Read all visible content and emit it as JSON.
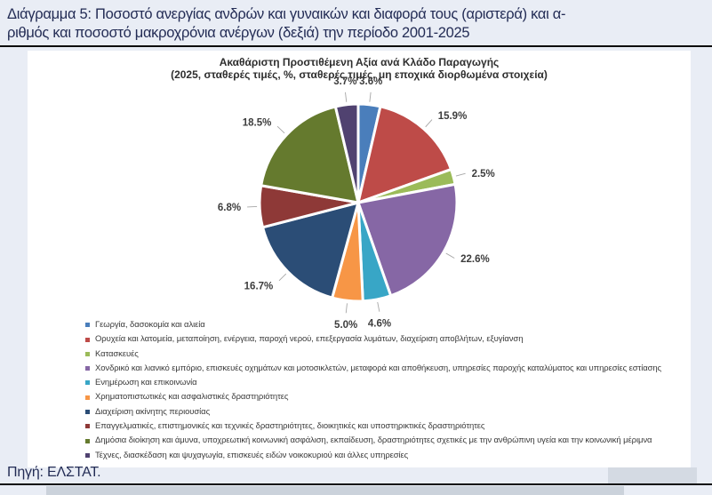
{
  "document": {
    "title_line1": "Διάγραμμα 5: Ποσοστό ανεργίας ανδρών και γυναικών και διαφορά τους (αριστερά) και α-",
    "title_line2": "ριθμός και ποσοστό μακροχρόνια ανέργων (δεξιά) την περίοδο 2001-2025",
    "source": "Πηγή: ΕΛΣΤΑΤ."
  },
  "colors": {
    "page_bg": "#E9EDF5",
    "card_bg": "#FFFFFF",
    "title_text": "#232C55",
    "chart_text": "#2E2E2E",
    "legend_text": "#3A3A3A",
    "leader_line": "#A6A6A6",
    "rule": "#0B0B0B",
    "bottom_strip": "#CBD2DB"
  },
  "chart_data": {
    "type": "pie",
    "title": "Ακαθάριστη Προστιθέμενη Αξία ανά Κλάδο Παραγωγής",
    "subtitle": "(2025, σταθερές τιμές,  %, σταθερές τιμές, μη εποχικά διορθωμένα στοιχεία)",
    "unit": "%",
    "start_angle_deg": 0,
    "direction": "clockwise",
    "legend_position": "bottom-left",
    "slices": [
      {
        "label": "Γεωργία, δασοκομία και αλιεία",
        "value": 3.6,
        "pct_label": "3.6%",
        "color": "#4A7EBB"
      },
      {
        "label": "Ορυχεία και λατομεία, μεταποίηση, ενέργεια, παροχή νερού, επεξεργασία λυμάτων, διαχείριση αποβλήτων, εξυγίανση",
        "value": 15.9,
        "pct_label": "15.9%",
        "color": "#BE4B48"
      },
      {
        "label": "Κατασκευές",
        "value": 2.5,
        "pct_label": "2.5%",
        "color": "#9BBB59"
      },
      {
        "label": "Χονδρικό και λιανικό εμπόριο, επισκευές οχημάτων και μοτοσικλετών, μεταφορά και αποθήκευση, υπηρεσίες παροχής καταλύματος και υπηρεσίες εστίασης",
        "value": 22.6,
        "pct_label": "22.6%",
        "color": "#8667A5"
      },
      {
        "label": "Ενημέρωση και επικοινωνία",
        "value": 4.6,
        "pct_label": "4.6%",
        "color": "#38A6C6"
      },
      {
        "label": "Χρηματοπιστωτικές και ασφαλιστικές δραστηριότητες",
        "value": 5.0,
        "pct_label": "5.0%",
        "color": "#F79646"
      },
      {
        "label": "Διαχείριση ακίνητης περιουσίας",
        "value": 16.7,
        "pct_label": "16.7%",
        "color": "#2B4D76"
      },
      {
        "label": "Επαγγελματικές, επιστημονικές και τεχνικές δραστηριότητες, διοικητικές και υποστηρικτικές δραστηριότητες",
        "value": 6.8,
        "pct_label": "6.8%",
        "color": "#8E3937"
      },
      {
        "label": "Δημόσια διοίκηση και άμυνα, υποχρεωτική κοινωνική ασφάλιση, εκπαίδευση, δραστηριότητες σχετικές με την ανθρώπινη υγεία και την κοινωνική μέριμνα",
        "value": 18.5,
        "pct_label": "18.5%",
        "color": "#657A2E"
      },
      {
        "label": "Τέχνες, διασκέδαση και ψυχαγωγία, επισκευές ειδών νοικοκυριού και άλλες υπηρεσίες",
        "value": 3.7,
        "pct_label": "3.7%",
        "color": "#504270"
      }
    ]
  }
}
